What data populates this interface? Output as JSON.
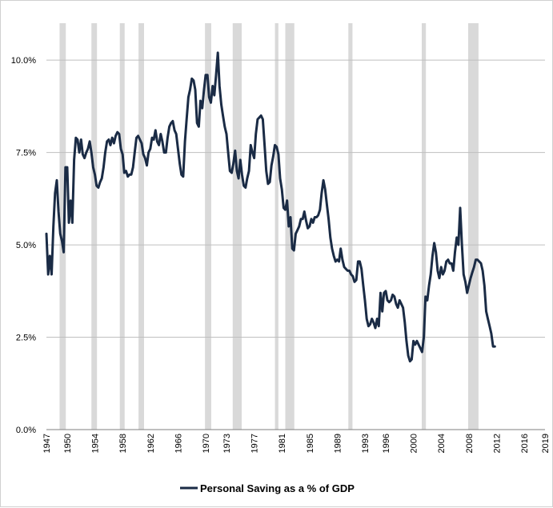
{
  "chart_data": {
    "type": "line",
    "title": "",
    "xlabel": "",
    "ylabel": "",
    "xlim": [
      1947,
      2019
    ],
    "ylim": [
      0,
      11
    ],
    "y_ticks": [
      0,
      2.5,
      5,
      7.5,
      10
    ],
    "y_tick_labels": [
      "0.0%",
      "2.5%",
      "5.0%",
      "7.5%",
      "10.0%"
    ],
    "x_ticks": [
      1947,
      1950,
      1954,
      1958,
      1962,
      1966,
      1970,
      1973,
      1977,
      1981,
      1985,
      1989,
      1993,
      1996,
      2000,
      2004,
      2008,
      2012,
      2016,
      2019
    ],
    "x_tick_labels": [
      "1947",
      "1950",
      "1954",
      "1958",
      "1962",
      "1966",
      "1970",
      "1973",
      "1977",
      "1981",
      "1985",
      "1989",
      "1993",
      "1996",
      "2000",
      "2004",
      "2008",
      "2012",
      "2016",
      "2019"
    ],
    "grid": "horizontal",
    "legend_position": "bottom",
    "line_color": "#1a2b45",
    "recession_color": "#d9d9d9",
    "recessions": [
      [
        1948.9,
        1949.8
      ],
      [
        1953.5,
        1954.3
      ],
      [
        1957.6,
        1958.3
      ],
      [
        1960.3,
        1961.1
      ],
      [
        1969.9,
        1970.8
      ],
      [
        1973.9,
        1975.2
      ],
      [
        1980.0,
        1980.5
      ],
      [
        1981.5,
        1982.8
      ],
      [
        1990.6,
        1991.2
      ],
      [
        2001.2,
        2001.8
      ],
      [
        2007.9,
        2009.4
      ]
    ],
    "series": [
      {
        "name": "Personal Saving as a % of GDP",
        "points": [
          [
            1947.0,
            5.3
          ],
          [
            1947.25,
            4.2
          ],
          [
            1947.5,
            4.7
          ],
          [
            1947.75,
            4.2
          ],
          [
            1948.0,
            5.5
          ],
          [
            1948.25,
            6.4
          ],
          [
            1948.5,
            6.75
          ],
          [
            1948.75,
            5.9
          ],
          [
            1949.0,
            5.3
          ],
          [
            1949.25,
            5.1
          ],
          [
            1949.5,
            4.8
          ],
          [
            1949.75,
            7.1
          ],
          [
            1950.0,
            7.1
          ],
          [
            1950.25,
            5.6
          ],
          [
            1950.5,
            6.2
          ],
          [
            1950.75,
            5.6
          ],
          [
            1951.0,
            7.3
          ],
          [
            1951.25,
            7.9
          ],
          [
            1951.5,
            7.85
          ],
          [
            1951.75,
            7.5
          ],
          [
            1952.0,
            7.85
          ],
          [
            1952.25,
            7.45
          ],
          [
            1952.5,
            7.35
          ],
          [
            1952.75,
            7.5
          ],
          [
            1953.0,
            7.6
          ],
          [
            1953.25,
            7.8
          ],
          [
            1953.5,
            7.5
          ],
          [
            1953.75,
            7.1
          ],
          [
            1954.0,
            6.9
          ],
          [
            1954.25,
            6.6
          ],
          [
            1954.5,
            6.55
          ],
          [
            1954.75,
            6.7
          ],
          [
            1955.0,
            6.8
          ],
          [
            1955.25,
            7.1
          ],
          [
            1955.5,
            7.5
          ],
          [
            1955.75,
            7.8
          ],
          [
            1956.0,
            7.85
          ],
          [
            1956.25,
            7.7
          ],
          [
            1956.5,
            7.9
          ],
          [
            1956.75,
            7.75
          ],
          [
            1957.0,
            7.95
          ],
          [
            1957.25,
            8.05
          ],
          [
            1957.5,
            8.0
          ],
          [
            1957.75,
            7.6
          ],
          [
            1958.0,
            7.45
          ],
          [
            1958.25,
            6.95
          ],
          [
            1958.5,
            7.0
          ],
          [
            1958.75,
            6.85
          ],
          [
            1959.0,
            6.9
          ],
          [
            1959.25,
            6.9
          ],
          [
            1959.5,
            7.1
          ],
          [
            1959.75,
            7.5
          ],
          [
            1960.0,
            7.9
          ],
          [
            1960.25,
            7.95
          ],
          [
            1960.5,
            7.85
          ],
          [
            1960.75,
            7.75
          ],
          [
            1961.0,
            7.45
          ],
          [
            1961.25,
            7.35
          ],
          [
            1961.5,
            7.15
          ],
          [
            1961.75,
            7.5
          ],
          [
            1962.0,
            7.6
          ],
          [
            1962.25,
            7.9
          ],
          [
            1962.5,
            7.85
          ],
          [
            1962.75,
            8.1
          ],
          [
            1963.0,
            7.8
          ],
          [
            1963.25,
            7.7
          ],
          [
            1963.5,
            8.0
          ],
          [
            1963.75,
            7.8
          ],
          [
            1964.0,
            7.5
          ],
          [
            1964.25,
            7.5
          ],
          [
            1964.5,
            7.9
          ],
          [
            1964.75,
            8.2
          ],
          [
            1965.0,
            8.3
          ],
          [
            1965.25,
            8.35
          ],
          [
            1965.5,
            8.1
          ],
          [
            1965.75,
            8.0
          ],
          [
            1966.0,
            7.6
          ],
          [
            1966.25,
            7.2
          ],
          [
            1966.5,
            6.9
          ],
          [
            1966.75,
            6.85
          ],
          [
            1967.0,
            7.8
          ],
          [
            1967.25,
            8.4
          ],
          [
            1967.5,
            9.0
          ],
          [
            1967.75,
            9.2
          ],
          [
            1968.0,
            9.5
          ],
          [
            1968.25,
            9.45
          ],
          [
            1968.5,
            9.2
          ],
          [
            1968.75,
            8.3
          ],
          [
            1969.0,
            8.2
          ],
          [
            1969.25,
            8.9
          ],
          [
            1969.5,
            8.7
          ],
          [
            1969.75,
            9.2
          ],
          [
            1970.0,
            9.6
          ],
          [
            1970.25,
            9.6
          ],
          [
            1970.5,
            9.0
          ],
          [
            1970.75,
            8.85
          ],
          [
            1971.0,
            9.3
          ],
          [
            1971.25,
            9.05
          ],
          [
            1971.5,
            9.6
          ],
          [
            1971.75,
            10.2
          ],
          [
            1972.0,
            9.3
          ],
          [
            1972.25,
            8.8
          ],
          [
            1972.5,
            8.5
          ],
          [
            1972.75,
            8.2
          ],
          [
            1973.0,
            8.0
          ],
          [
            1973.25,
            7.5
          ],
          [
            1973.5,
            7.0
          ],
          [
            1973.75,
            6.95
          ],
          [
            1974.0,
            7.2
          ],
          [
            1974.25,
            7.55
          ],
          [
            1974.5,
            7.0
          ],
          [
            1974.75,
            6.8
          ],
          [
            1975.0,
            7.3
          ],
          [
            1975.25,
            6.9
          ],
          [
            1975.5,
            6.6
          ],
          [
            1975.75,
            6.55
          ],
          [
            1976.0,
            6.8
          ],
          [
            1976.25,
            7.0
          ],
          [
            1976.5,
            7.7
          ],
          [
            1976.75,
            7.5
          ],
          [
            1977.0,
            7.35
          ],
          [
            1977.25,
            8.0
          ],
          [
            1977.5,
            8.4
          ],
          [
            1977.75,
            8.45
          ],
          [
            1978.0,
            8.5
          ],
          [
            1978.25,
            8.4
          ],
          [
            1978.5,
            7.7
          ],
          [
            1978.75,
            7.0
          ],
          [
            1979.0,
            6.65
          ],
          [
            1979.25,
            6.7
          ],
          [
            1979.5,
            7.15
          ],
          [
            1979.75,
            7.4
          ],
          [
            1980.0,
            7.7
          ],
          [
            1980.25,
            7.65
          ],
          [
            1980.5,
            7.45
          ],
          [
            1980.75,
            6.8
          ],
          [
            1981.0,
            6.5
          ],
          [
            1981.25,
            6.0
          ],
          [
            1981.5,
            5.95
          ],
          [
            1981.75,
            6.2
          ],
          [
            1982.0,
            5.5
          ],
          [
            1982.25,
            5.75
          ],
          [
            1982.5,
            4.9
          ],
          [
            1982.75,
            4.85
          ],
          [
            1983.0,
            5.3
          ],
          [
            1983.25,
            5.4
          ],
          [
            1983.5,
            5.5
          ],
          [
            1983.75,
            5.7
          ],
          [
            1984.0,
            5.7
          ],
          [
            1984.25,
            5.9
          ],
          [
            1984.5,
            5.65
          ],
          [
            1984.75,
            5.45
          ],
          [
            1985.0,
            5.5
          ],
          [
            1985.25,
            5.7
          ],
          [
            1985.5,
            5.6
          ],
          [
            1985.75,
            5.75
          ],
          [
            1986.0,
            5.75
          ],
          [
            1986.25,
            5.8
          ],
          [
            1986.5,
            5.95
          ],
          [
            1986.75,
            6.4
          ],
          [
            1987.0,
            6.75
          ],
          [
            1987.25,
            6.5
          ],
          [
            1987.5,
            6.1
          ],
          [
            1987.75,
            5.7
          ],
          [
            1988.0,
            5.2
          ],
          [
            1988.25,
            4.9
          ],
          [
            1988.5,
            4.7
          ],
          [
            1988.75,
            4.55
          ],
          [
            1989.0,
            4.6
          ],
          [
            1989.25,
            4.55
          ],
          [
            1989.5,
            4.9
          ],
          [
            1989.75,
            4.6
          ],
          [
            1990.0,
            4.4
          ],
          [
            1990.25,
            4.35
          ],
          [
            1990.5,
            4.3
          ],
          [
            1990.75,
            4.3
          ],
          [
            1991.0,
            4.2
          ],
          [
            1991.25,
            4.15
          ],
          [
            1991.5,
            4.0
          ],
          [
            1991.75,
            4.05
          ],
          [
            1992.0,
            4.55
          ],
          [
            1992.25,
            4.55
          ],
          [
            1992.5,
            4.35
          ],
          [
            1992.75,
            3.9
          ],
          [
            1993.0,
            3.5
          ],
          [
            1993.25,
            3.0
          ],
          [
            1993.5,
            2.8
          ],
          [
            1993.75,
            2.85
          ],
          [
            1994.0,
            3.0
          ],
          [
            1994.25,
            2.9
          ],
          [
            1994.5,
            2.75
          ],
          [
            1994.75,
            3.0
          ],
          [
            1995.0,
            2.8
          ],
          [
            1995.25,
            3.7
          ],
          [
            1995.5,
            3.2
          ],
          [
            1995.75,
            3.7
          ],
          [
            1996.0,
            3.75
          ],
          [
            1996.25,
            3.5
          ],
          [
            1996.5,
            3.45
          ],
          [
            1996.75,
            3.5
          ],
          [
            1997.0,
            3.65
          ],
          [
            1997.25,
            3.6
          ],
          [
            1997.5,
            3.4
          ],
          [
            1997.75,
            3.3
          ],
          [
            1998.0,
            3.5
          ],
          [
            1998.25,
            3.4
          ],
          [
            1998.5,
            3.3
          ],
          [
            1998.75,
            2.9
          ],
          [
            1999.0,
            2.4
          ],
          [
            1999.25,
            2.0
          ],
          [
            1999.5,
            1.85
          ],
          [
            1999.75,
            1.9
          ],
          [
            2000.0,
            2.4
          ],
          [
            2000.25,
            2.3
          ],
          [
            2000.5,
            2.4
          ],
          [
            2000.75,
            2.3
          ],
          [
            2001.0,
            2.2
          ],
          [
            2001.25,
            2.1
          ],
          [
            2001.5,
            2.5
          ],
          [
            2001.75,
            3.6
          ],
          [
            2002.0,
            3.5
          ],
          [
            2002.25,
            3.9
          ],
          [
            2002.5,
            4.2
          ],
          [
            2002.75,
            4.7
          ],
          [
            2003.0,
            5.05
          ],
          [
            2003.25,
            4.8
          ],
          [
            2003.5,
            4.3
          ],
          [
            2003.75,
            4.1
          ],
          [
            2004.0,
            4.4
          ],
          [
            2004.25,
            4.2
          ],
          [
            2004.5,
            4.3
          ],
          [
            2004.75,
            4.55
          ],
          [
            2005.0,
            4.6
          ],
          [
            2005.25,
            4.5
          ],
          [
            2005.5,
            4.5
          ],
          [
            2005.75,
            4.3
          ],
          [
            2006.0,
            4.8
          ],
          [
            2006.25,
            5.2
          ],
          [
            2006.5,
            5.0
          ],
          [
            2006.75,
            6.0
          ],
          [
            2007.0,
            5.0
          ],
          [
            2007.25,
            4.2
          ],
          [
            2007.5,
            4.0
          ],
          [
            2007.75,
            3.7
          ],
          [
            2008.0,
            3.9
          ],
          [
            2008.25,
            4.1
          ],
          [
            2008.5,
            4.25
          ],
          [
            2008.75,
            4.4
          ],
          [
            2009.0,
            4.6
          ],
          [
            2009.25,
            4.6
          ],
          [
            2009.5,
            4.55
          ],
          [
            2009.75,
            4.5
          ],
          [
            2010.0,
            4.3
          ],
          [
            2010.25,
            3.9
          ],
          [
            2010.5,
            3.2
          ],
          [
            2010.75,
            3.0
          ],
          [
            2011.0,
            2.8
          ],
          [
            2011.25,
            2.6
          ],
          [
            2011.5,
            2.25
          ],
          [
            2011.75,
            2.25
          ]
        ]
      }
    ]
  }
}
